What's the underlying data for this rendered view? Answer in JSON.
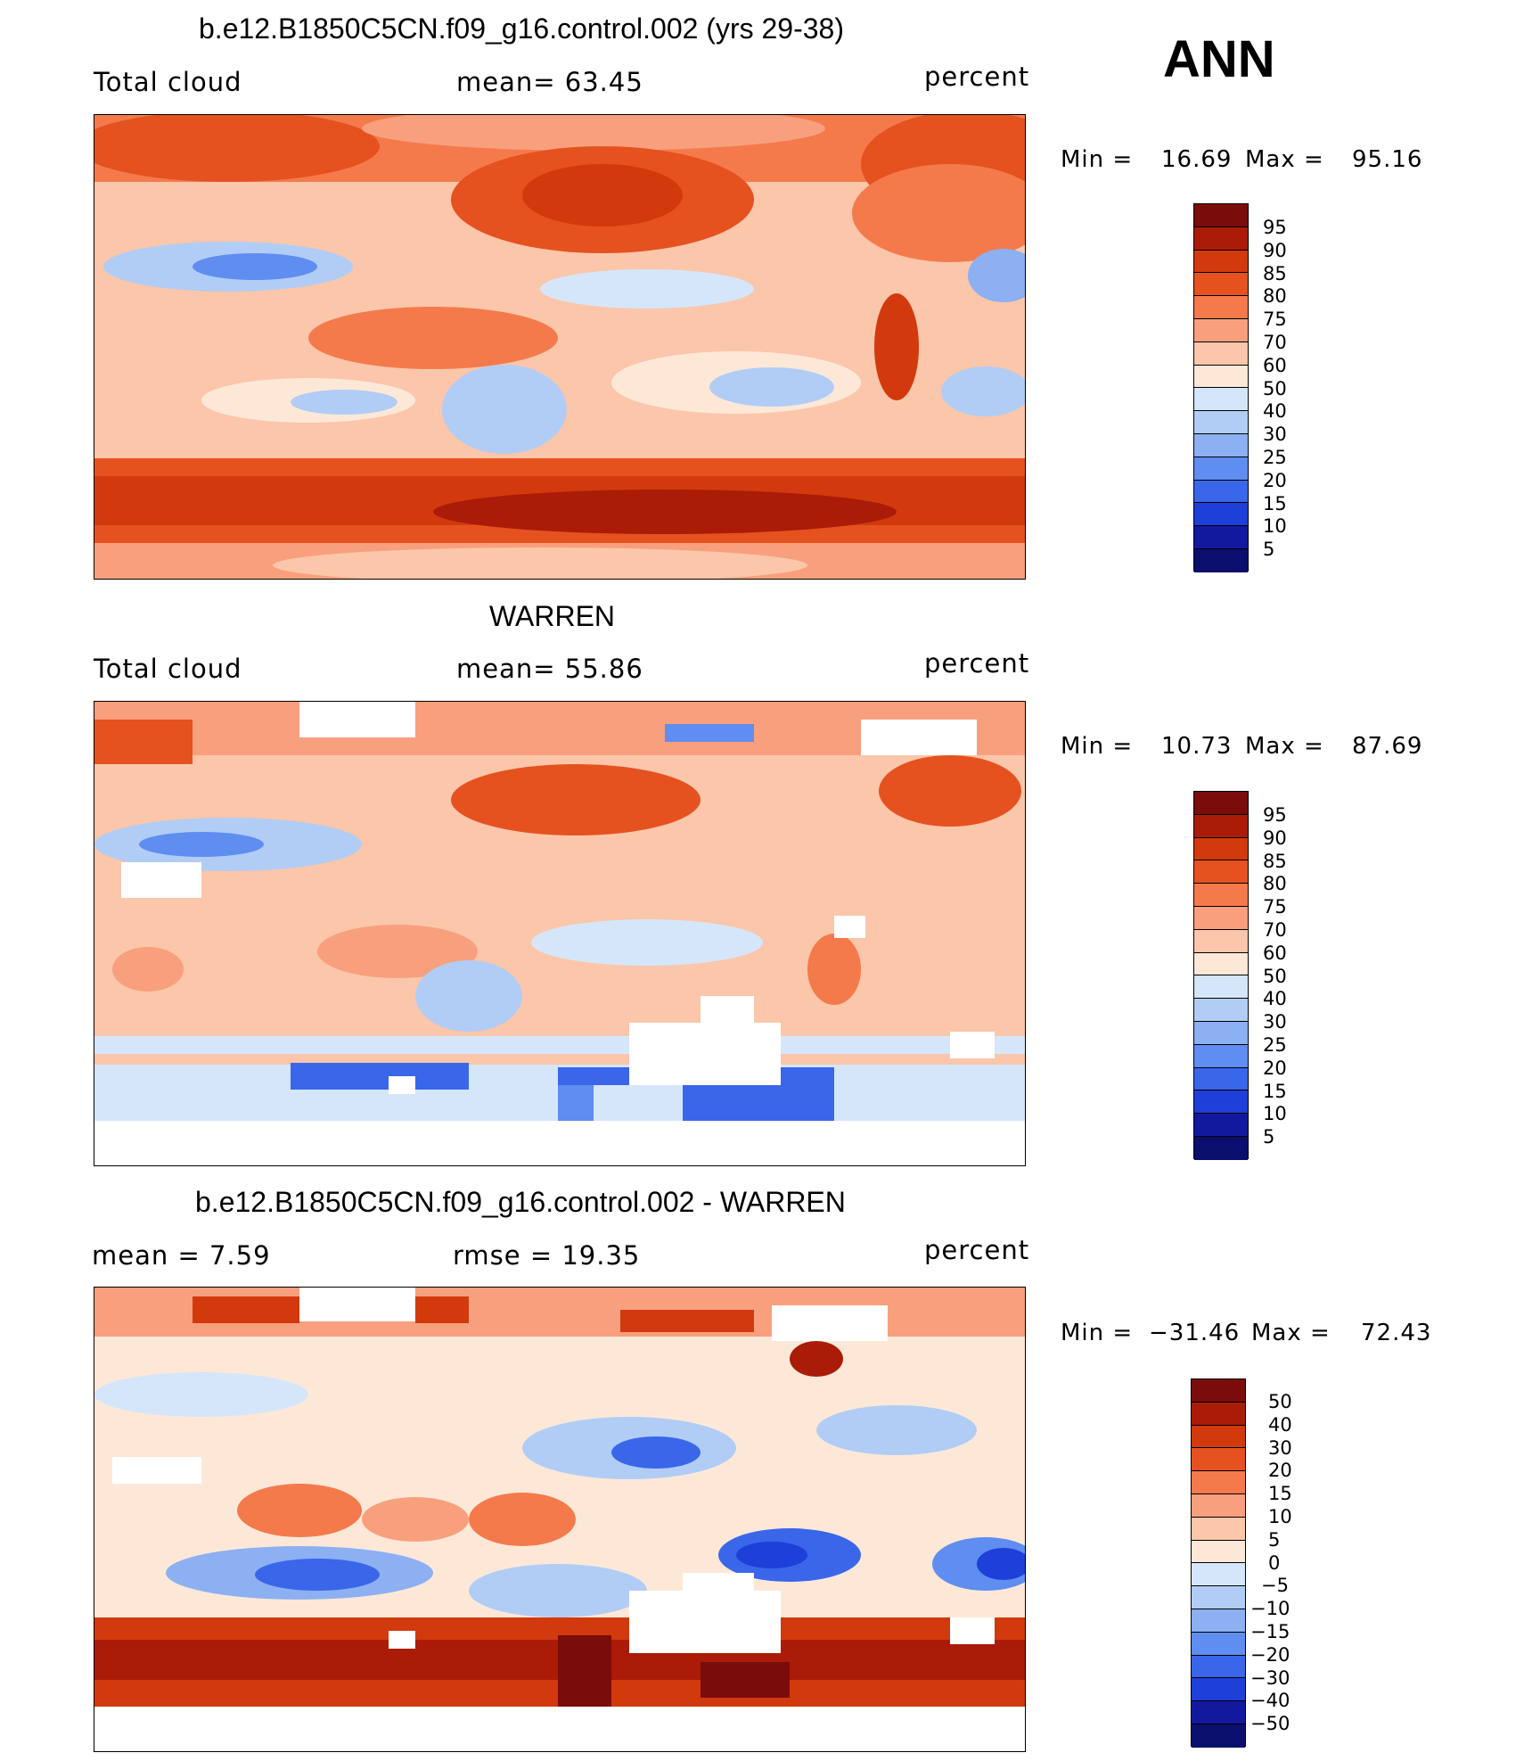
{
  "season": "ANN",
  "panels": [
    {
      "title": "b.e12.B1850C5CN.f09_g16.control.002 (yrs 29-38)",
      "left": "Total cloud",
      "center": "mean=   63.45",
      "right": "percent",
      "min_label": "Min =",
      "min": "16.69",
      "max_label": "Max =",
      "max": "95.16",
      "levels": [
        "95",
        "90",
        "85",
        "80",
        "75",
        "70",
        "60",
        "50",
        "40",
        "30",
        "25",
        "20",
        "15",
        "10",
        "5"
      ]
    },
    {
      "title": "WARREN",
      "left": "Total cloud",
      "center": "mean=   55.86",
      "right": "percent",
      "min_label": "Min =",
      "min": "10.73",
      "max_label": "Max =",
      "max": "87.69",
      "levels": [
        "95",
        "90",
        "85",
        "80",
        "75",
        "70",
        "60",
        "50",
        "40",
        "30",
        "25",
        "20",
        "15",
        "10",
        "5"
      ]
    },
    {
      "title": "b.e12.B1850C5CN.f09_g16.control.002 - WARREN",
      "left": "mean =     7.59",
      "center": "rmse  =    19.35",
      "right": "percent",
      "min_label": "Min =",
      "min": "−31.46",
      "max_label": "Max =",
      "max": "72.43",
      "levels": [
        "50",
        "40",
        "30",
        "20",
        "15",
        "10",
        "5",
        "0",
        "−5",
        "−10",
        "−15",
        "−20",
        "−30",
        "−40",
        "−50"
      ]
    }
  ],
  "colors": {
    "palette": [
      "#7b0c0c",
      "#aa1c08",
      "#d23a0e",
      "#e5521f",
      "#f47a4c",
      "#f8a07d",
      "#fbc6aa",
      "#fde8d8",
      "#d6e6fa",
      "#b1cdf6",
      "#8cb0f2",
      "#5f8df0",
      "#3a66ea",
      "#1f3fd9",
      "#13199e",
      "#0a0f6e"
    ]
  }
}
